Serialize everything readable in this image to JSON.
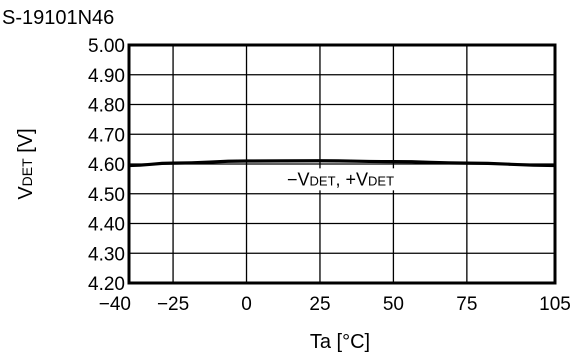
{
  "chart_data": {
    "type": "line",
    "title": "S-19101N46",
    "xlabel": "Ta [°C]",
    "ylabel_main": "V",
    "ylabel_sub": "DET",
    "ylabel_unit": " [V]",
    "xlim": [
      -40,
      105
    ],
    "ylim": [
      4.2,
      5.0
    ],
    "x_ticks": [
      -40,
      -25,
      0,
      25,
      50,
      75,
      105
    ],
    "x_tick_labels": [
      "−40",
      "−25",
      "0",
      "25",
      "50",
      "75",
      "105"
    ],
    "x_grid": [
      -25,
      0,
      25,
      50,
      75
    ],
    "y_ticks": [
      4.2,
      4.3,
      4.4,
      4.5,
      4.6,
      4.7,
      4.8,
      4.9,
      5.0
    ],
    "y_tick_labels": [
      "4.20",
      "4.30",
      "4.40",
      "4.50",
      "4.60",
      "4.70",
      "4.80",
      "4.90",
      "5.00"
    ],
    "grid": true,
    "legend": "none",
    "series": [
      {
        "x": [
          -40,
          -25,
          0,
          25,
          50,
          75,
          105
        ],
        "y": [
          4.595,
          4.603,
          4.61,
          4.611,
          4.608,
          4.603,
          4.595
        ],
        "color": "#000000"
      }
    ],
    "annotation": {
      "parts": [
        {
          "text": "−V",
          "sub": false
        },
        {
          "text": "DET",
          "sub": true
        },
        {
          "text": ", +V",
          "sub": false
        },
        {
          "text": "DET",
          "sub": true
        }
      ],
      "x": 32,
      "y": 4.535
    }
  }
}
